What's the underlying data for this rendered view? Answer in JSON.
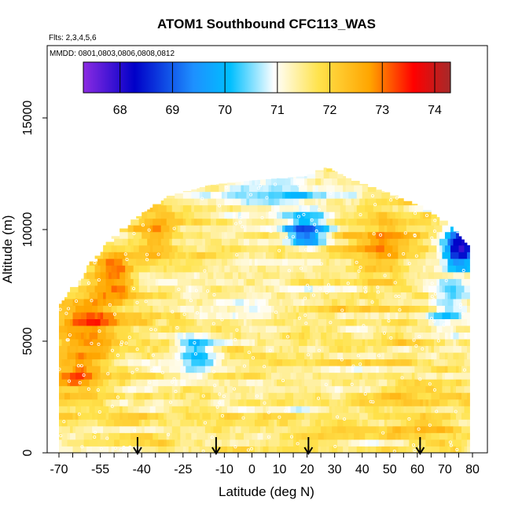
{
  "chart_data": {
    "type": "heatmap",
    "title": "ATOM1 Southbound CFC113_WAS",
    "flights_note": "Flts: 2,3,4,5,6",
    "dates_note": "MMDD: 0801,0803,0806,0808,0812",
    "xlabel": "Latitude (deg N)",
    "ylabel": "Altitude (m)",
    "xlim": [
      -70,
      80
    ],
    "ylim": [
      0,
      17500
    ],
    "x_ticks": [
      -70,
      -55,
      -40,
      -25,
      -10,
      0,
      10,
      20,
      30,
      40,
      50,
      60,
      70,
      80
    ],
    "x_minor_step": 5,
    "y_ticks": [
      0,
      5000,
      10000,
      15000
    ],
    "colorbar": {
      "min": 67.3,
      "max": 74.3,
      "ticks": [
        68,
        69,
        70,
        71,
        72,
        73,
        74
      ],
      "colors": [
        "#8b2be2",
        "#0000c8",
        "#1e90ff",
        "#00bfff",
        "#ffffff",
        "#ffe34d",
        "#ffa500",
        "#ff0000",
        "#a52a2a"
      ],
      "color_stops": [
        0,
        0.14,
        0.3,
        0.4,
        0.52,
        0.64,
        0.78,
        0.9,
        1
      ]
    },
    "arrow_latitudes": [
      -41.5,
      -13,
      20.5,
      61
    ],
    "data_extent": {
      "lat_range": [
        -70,
        79
      ],
      "top_altitude": [
        {
          "lat": -70,
          "alt": 6600
        },
        {
          "lat": -62,
          "alt": 7800
        },
        {
          "lat": -55,
          "alt": 9000
        },
        {
          "lat": -48,
          "alt": 9900
        },
        {
          "lat": -40,
          "alt": 10700
        },
        {
          "lat": -30,
          "alt": 11500
        },
        {
          "lat": -15,
          "alt": 12000
        },
        {
          "lat": 0,
          "alt": 12200
        },
        {
          "lat": 20,
          "alt": 12400
        },
        {
          "lat": 27,
          "alt": 12800
        },
        {
          "lat": 35,
          "alt": 12300
        },
        {
          "lat": 50,
          "alt": 11600
        },
        {
          "lat": 62,
          "alt": 11000
        },
        {
          "lat": 72,
          "alt": 10200
        },
        {
          "lat": 79,
          "alt": 9200
        }
      ]
    },
    "value_regions": [
      {
        "lat": [
          -68,
          -50
        ],
        "alt": [
          5000,
          7000
        ],
        "value": 73.2
      },
      {
        "lat": [
          -70,
          -55
        ],
        "alt": [
          2500,
          5000
        ],
        "value": 72.8
      },
      {
        "lat": [
          -55,
          -45
        ],
        "alt": [
          7000,
          9000
        ],
        "value": 73.3
      },
      {
        "lat": [
          -40,
          -30
        ],
        "alt": [
          8500,
          10500
        ],
        "value": 72.6
      },
      {
        "lat": [
          -25,
          -15
        ],
        "alt": [
          4000,
          5000
        ],
        "value": 69.8
      },
      {
        "lat": [
          15,
          25
        ],
        "alt": [
          9500,
          10500
        ],
        "value": 68.4
      },
      {
        "lat": [
          -10,
          30
        ],
        "alt": [
          10500,
          12500
        ],
        "value": 70.5
      },
      {
        "lat": [
          40,
          55
        ],
        "alt": [
          8000,
          10500
        ],
        "value": 72.7
      },
      {
        "lat": [
          50,
          75
        ],
        "alt": [
          0,
          3000
        ],
        "value": 72.3
      },
      {
        "lat": [
          -10,
          40
        ],
        "alt": [
          0,
          3000
        ],
        "value": 71.6
      },
      {
        "lat": [
          -20,
          20
        ],
        "alt": [
          5000,
          8000
        ],
        "value": 71.3
      },
      {
        "lat": [
          65,
          78
        ],
        "alt": [
          5000,
          8000
        ],
        "value": 70.7
      },
      {
        "lat": [
          72,
          79
        ],
        "alt": [
          8500,
          10000
        ],
        "value": 67.8
      }
    ]
  }
}
